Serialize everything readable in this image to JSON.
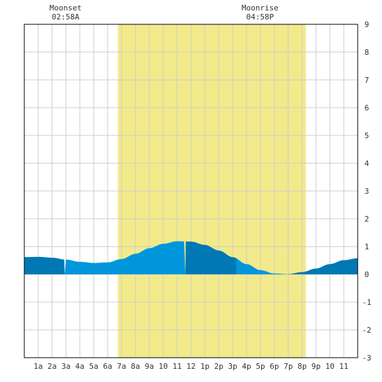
{
  "chart_data": {
    "type": "area",
    "title": "",
    "xlabel": "",
    "ylabel": "",
    "x_tick_labels": [
      "1a",
      "2a",
      "3a",
      "4a",
      "5a",
      "6a",
      "7a",
      "8a",
      "9a",
      "10",
      "11",
      "12",
      "1p",
      "2p",
      "3p",
      "4p",
      "5p",
      "6p",
      "7p",
      "8p",
      "9p",
      "10",
      "11"
    ],
    "y_tick_labels": [
      "-3",
      "-2",
      "-1",
      "0",
      "1",
      "2",
      "3",
      "4",
      "5",
      "6",
      "7",
      "8",
      "9"
    ],
    "xlim": [
      0,
      24
    ],
    "ylim": [
      -3,
      9
    ],
    "grid": true,
    "daylight_hours": [
      6.73,
      20.27
    ],
    "moon_events": [
      {
        "label": "Moonset",
        "time": "02:58A",
        "hour": 2.97
      },
      {
        "label": "Moonrise",
        "time": "04:58P",
        "hour": 16.97
      }
    ],
    "tide_extremes": [
      {
        "hour": 0.8,
        "height": 0.64
      },
      {
        "hour": 5.0,
        "height": 0.41
      },
      {
        "hour": 11.6,
        "height": 1.2
      },
      {
        "hour": 18.9,
        "height": 0.0
      }
    ],
    "series": [
      {
        "values_hourly": [
          0.62,
          0.63,
          0.6,
          0.53,
          0.45,
          0.41,
          0.43,
          0.55,
          0.74,
          0.94,
          1.1,
          1.19,
          1.18,
          1.06,
          0.86,
          0.62,
          0.37,
          0.15,
          0.03,
          0.01,
          0.08,
          0.21,
          0.37,
          0.51,
          0.58
        ]
      }
    ],
    "colors": {
      "daylight": "#f2ea8a",
      "tide_dark": "#0078b4",
      "tide_light": "#0096dc",
      "grid": "#cccccc",
      "axis": "#000000"
    }
  }
}
